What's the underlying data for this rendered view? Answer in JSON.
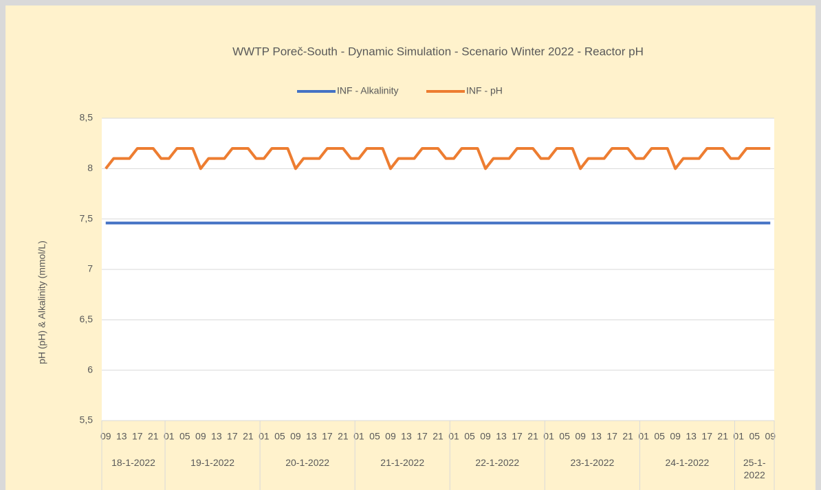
{
  "chart_data": {
    "type": "line",
    "title": "WWTP Poreč-South - Dynamic Simulation - Scenario Winter 2022 - Reactor pH",
    "ylabel": "pH (pH) & Alkalinity (mmol/L)",
    "categories": [
      "09",
      null,
      "13",
      null,
      "17",
      null,
      "21",
      null,
      "01",
      null,
      "05",
      null,
      "09",
      null,
      "13",
      null,
      "17",
      null,
      "21",
      null,
      "01",
      null,
      "05",
      null,
      "09",
      null,
      "13",
      null,
      "17",
      null,
      "21",
      null,
      "01",
      null,
      "05",
      null,
      "09",
      null,
      "13",
      null,
      "17",
      null,
      "21",
      null,
      "01",
      null,
      "05",
      null,
      "09",
      null,
      "13",
      null,
      "17",
      null,
      "21",
      null,
      "01",
      null,
      "05",
      null,
      "09",
      null,
      "13",
      null,
      "17",
      null,
      "21",
      null,
      "01",
      null,
      "05",
      null,
      "09",
      null,
      "13",
      null,
      "17",
      null,
      "21",
      null,
      "01",
      null,
      "05",
      null,
      "09"
    ],
    "x_groups": [
      "18-1-2022",
      "19-1-2022",
      "20-1-2022",
      "21-1-2022",
      "22-1-2022",
      "23-1-2022",
      "24-1-2022",
      "25-1-2022"
    ],
    "series": [
      {
        "name": "INF - Alkalinity",
        "color": "#4472c4",
        "values": [
          7.46,
          7.46,
          7.46,
          7.46,
          7.46,
          7.46,
          7.46,
          7.46,
          7.46,
          7.46,
          7.46,
          7.46,
          7.46,
          7.46,
          7.46,
          7.46,
          7.46,
          7.46,
          7.46,
          7.46,
          7.46,
          7.46,
          7.46,
          7.46,
          7.46,
          7.46,
          7.46,
          7.46,
          7.46,
          7.46,
          7.46,
          7.46,
          7.46,
          7.46,
          7.46,
          7.46,
          7.46,
          7.46,
          7.46,
          7.46,
          7.46,
          7.46,
          7.46,
          7.46,
          7.46,
          7.46,
          7.46,
          7.46,
          7.46,
          7.46,
          7.46,
          7.46,
          7.46,
          7.46,
          7.46,
          7.46,
          7.46,
          7.46,
          7.46,
          7.46,
          7.46,
          7.46,
          7.46,
          7.46,
          7.46,
          7.46,
          7.46,
          7.46,
          7.46,
          7.46,
          7.46,
          7.46,
          7.46,
          7.46,
          7.46,
          7.46,
          7.46,
          7.46,
          7.46,
          7.46,
          7.46,
          7.46,
          7.46,
          7.46,
          7.46
        ]
      },
      {
        "name": "INF - pH",
        "color": "#ed7d31",
        "values": [
          8.0,
          8.1,
          8.1,
          8.1,
          8.2,
          8.2,
          8.2,
          8.1,
          8.1,
          8.2,
          8.2,
          8.2,
          8.0,
          8.1,
          8.1,
          8.1,
          8.2,
          8.2,
          8.2,
          8.1,
          8.1,
          8.2,
          8.2,
          8.2,
          8.0,
          8.1,
          8.1,
          8.1,
          8.2,
          8.2,
          8.2,
          8.1,
          8.1,
          8.2,
          8.2,
          8.2,
          8.0,
          8.1,
          8.1,
          8.1,
          8.2,
          8.2,
          8.2,
          8.1,
          8.1,
          8.2,
          8.2,
          8.2,
          8.0,
          8.1,
          8.1,
          8.1,
          8.2,
          8.2,
          8.2,
          8.1,
          8.1,
          8.2,
          8.2,
          8.2,
          8.0,
          8.1,
          8.1,
          8.1,
          8.2,
          8.2,
          8.2,
          8.1,
          8.1,
          8.2,
          8.2,
          8.2,
          8.0,
          8.1,
          8.1,
          8.1,
          8.2,
          8.2,
          8.2,
          8.1,
          8.1,
          8.2,
          8.2,
          8.2,
          8.2
        ]
      }
    ],
    "ylim": [
      5.5,
      8.5
    ],
    "yticks": [
      {
        "value": 5.5,
        "label": "5,5"
      },
      6,
      {
        "value": 6.5,
        "label": "6,5"
      },
      7,
      {
        "value": 7.5,
        "label": "7,5"
      },
      8,
      {
        "value": 8.5,
        "label": "8,5"
      }
    ],
    "grid": true,
    "legend": "top"
  }
}
